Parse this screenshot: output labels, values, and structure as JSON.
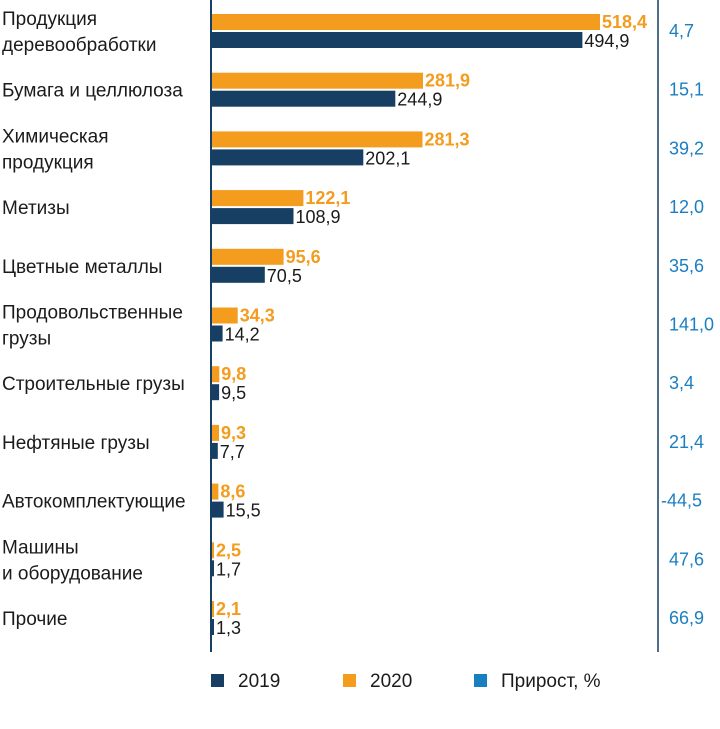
{
  "chart_data": {
    "type": "bar",
    "orientation": "horizontal",
    "categories": [
      [
        "Продукция",
        "деревообработки"
      ],
      [
        "Бумага и целлюлоза"
      ],
      [
        "Химическая",
        "продукция"
      ],
      [
        "Метизы"
      ],
      [
        "Цветные металлы"
      ],
      [
        "Продовольственные",
        "грузы"
      ],
      [
        "Строительные грузы"
      ],
      [
        "Нефтяные грузы"
      ],
      [
        "Автокомплектующие"
      ],
      [
        "Машины",
        "и оборудование"
      ],
      [
        "Прочие"
      ]
    ],
    "series": [
      {
        "name": "2020",
        "color": "#f39c1e",
        "values": [
          518.4,
          281.9,
          281.3,
          122.1,
          95.6,
          34.3,
          9.8,
          9.3,
          8.6,
          2.5,
          2.1
        ],
        "labels": [
          "518,4",
          "281,9",
          "281,3",
          "122,1",
          "95,6",
          "34,3",
          "9,8",
          "9,3",
          "8,6",
          "2,5",
          "2,1"
        ]
      },
      {
        "name": "2019",
        "color": "#173f63",
        "values": [
          494.9,
          244.9,
          202.1,
          108.9,
          70.5,
          14.2,
          9.5,
          7.7,
          15.5,
          1.7,
          1.3
        ],
        "labels": [
          "494,9",
          "244,9",
          "202,1",
          "108,9",
          "70,5",
          "14,2",
          "9,5",
          "7,7",
          "15,5",
          "1,7",
          "1,3"
        ]
      }
    ],
    "growth": {
      "name": "Прирост, %",
      "color": "#1a7fc1",
      "values": [
        4.7,
        15.1,
        39.2,
        12.0,
        35.6,
        141.0,
        3.4,
        21.4,
        -44.5,
        47.6,
        66.9
      ],
      "labels": [
        "4,7",
        "15,1",
        "39,2",
        "12,0",
        "35,6",
        "141,0",
        "3,4",
        "21,4",
        "-44,5",
        "47,6",
        "66,9"
      ]
    },
    "legend": [
      {
        "label": "2019",
        "color": "#173f63"
      },
      {
        "label": "2020",
        "color": "#f39c1e"
      },
      {
        "label": "Прирост, %",
        "color": "#1a7fc1"
      }
    ],
    "legend_position": "bottom",
    "xlim": [
      0,
      518.4
    ]
  }
}
